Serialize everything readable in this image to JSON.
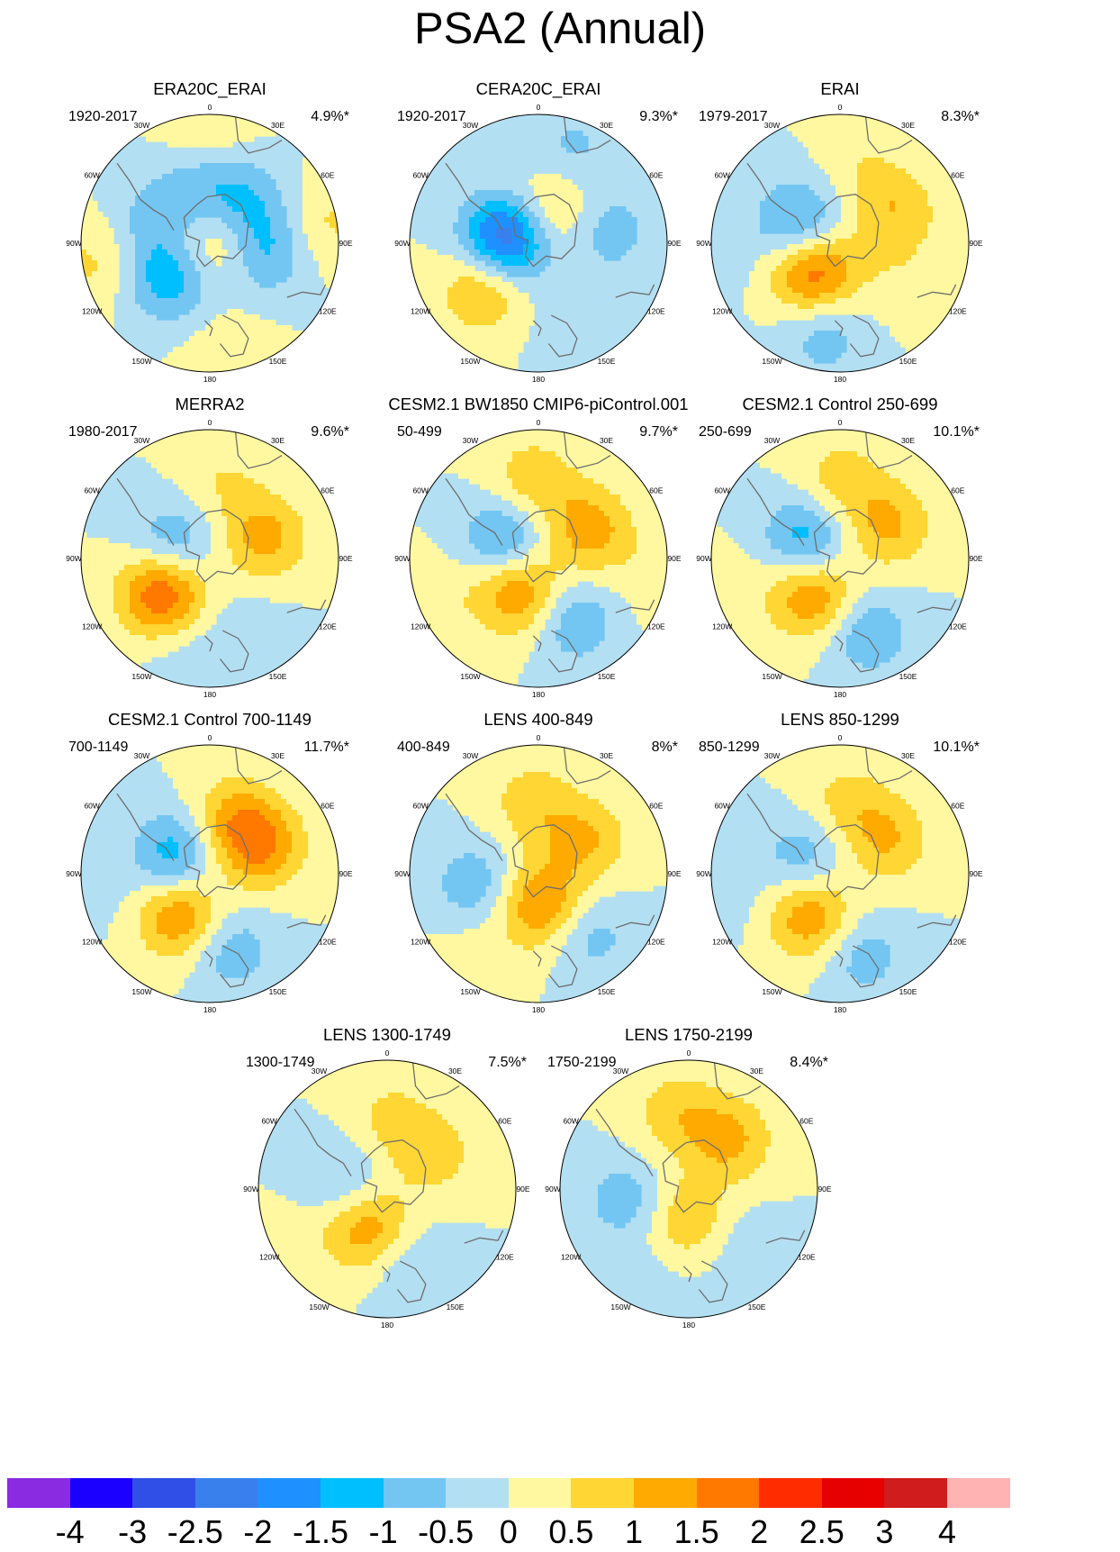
{
  "title": "PSA2 (Annual)",
  "lon_labels": [
    "0",
    "30E",
    "60E",
    "90E",
    "120E",
    "150E",
    "180",
    "150W",
    "120W",
    "90W",
    "60W",
    "30W"
  ],
  "colors": {
    "ocean_fill": "#b3dff2",
    "coastline": "#6e6e6e",
    "contour_levels": [
      "#8a2be2",
      "#1b00ff",
      "#2f4fe6",
      "#3a80ed",
      "#1e90ff",
      "#00bfff",
      "#73c6f2",
      "#b3dff2",
      "#fff8a0",
      "#ffd633",
      "#ffaa00",
      "#ff7800",
      "#ff2c00",
      "#e60000",
      "#d01c1c",
      "#ffb3b3"
    ]
  },
  "colorbar": {
    "labels": [
      "-4",
      "-3",
      "-2.5",
      "-2",
      "-1.5",
      "-1",
      "-0.5",
      "0",
      "0.5",
      "1",
      "1.5",
      "2",
      "2.5",
      "3",
      "4"
    ],
    "colors": [
      "#8a2be2",
      "#1b00ff",
      "#2f4fe6",
      "#3a80ed",
      "#1e90ff",
      "#00bfff",
      "#73c6f2",
      "#b3dff2",
      "#fff8a0",
      "#ffd633",
      "#ffaa00",
      "#ff7800",
      "#ff2c00",
      "#e60000",
      "#d01c1c",
      "#ffb3b3"
    ]
  },
  "chart_data": {
    "type": "polar_contour",
    "title": "PSA2 (Annual)",
    "projection": "south polar stereographic",
    "color_levels": [
      -4,
      -3,
      -2.5,
      -2,
      -1.5,
      -1,
      -0.5,
      0,
      0.5,
      1,
      1.5,
      2,
      2.5,
      3,
      4
    ],
    "panels": [
      {
        "title": "ERA20C_ERAI",
        "period": "1920-2017",
        "variance": "4.9%*",
        "features": [
          {
            "lon": 105,
            "r": 0.12,
            "v": 0.8
          },
          {
            "lon": -45,
            "r": 0.1,
            "v": 0.6
          },
          {
            "lon": -130,
            "r": 0.4,
            "v": -1.4
          },
          {
            "lon": 100,
            "r": 0.4,
            "v": -1.2
          },
          {
            "lon": 0,
            "r": 0.4,
            "v": -0.8
          },
          {
            "lon": -60,
            "r": 0.43,
            "v": -0.8
          },
          {
            "lon": 45,
            "r": 0.42,
            "v": -0.8
          },
          {
            "lon": -100,
            "r": 0.95,
            "v": 0.6
          },
          {
            "lon": 80,
            "r": 0.95,
            "v": 0.6
          },
          {
            "lon": 0,
            "r": 0.95,
            "v": 0.5
          },
          {
            "lon": 170,
            "r": 0.9,
            "v": 0.4
          }
        ]
      },
      {
        "title": "CERA20C_ERAI",
        "period": "1920-2017",
        "variance": "9.3%*",
        "features": [
          {
            "lon": -80,
            "r": 0.25,
            "v": -2.6
          },
          {
            "lon": 20,
            "r": 0.25,
            "v": 1.0
          },
          {
            "lon": -130,
            "r": 0.55,
            "v": 1.2
          },
          {
            "lon": 80,
            "r": 0.55,
            "v": -0.8
          },
          {
            "lon": 20,
            "r": 0.8,
            "v": -0.6
          },
          {
            "lon": 170,
            "r": 0.6,
            "v": -0.2
          }
        ]
      },
      {
        "title": "ERAI",
        "period": "1979-2017",
        "variance": "8.3%*",
        "features": [
          {
            "lon": -135,
            "r": 0.3,
            "v": 2.0
          },
          {
            "lon": -65,
            "r": 0.35,
            "v": -1.4
          },
          {
            "lon": 60,
            "r": 0.5,
            "v": 0.9
          },
          {
            "lon": -170,
            "r": 0.72,
            "v": -0.8
          },
          {
            "lon": 15,
            "r": 0.6,
            "v": 0.4
          },
          {
            "lon": 120,
            "r": 0.55,
            "v": 0.3
          },
          {
            "lon": -100,
            "r": 0.9,
            "v": -0.2
          }
        ]
      },
      {
        "title": "MERRA2",
        "period": "1980-2017",
        "variance": "9.6%*",
        "features": [
          {
            "lon": -125,
            "r": 0.45,
            "v": 2.1
          },
          {
            "lon": -70,
            "r": 0.3,
            "v": -1.1
          },
          {
            "lon": 70,
            "r": 0.45,
            "v": 1.2
          },
          {
            "lon": 10,
            "r": 0.6,
            "v": 0.5
          },
          {
            "lon": 150,
            "r": 0.6,
            "v": -0.3
          },
          {
            "lon": -170,
            "r": 0.8,
            "v": -0.4
          }
        ]
      },
      {
        "title": "CESM2.1 BW1850 CMIP6-piControl.001",
        "period": "50-499",
        "variance": "9.7%*",
        "features": [
          {
            "lon": -150,
            "r": 0.3,
            "v": 1.6
          },
          {
            "lon": -60,
            "r": 0.3,
            "v": -1.3
          },
          {
            "lon": 60,
            "r": 0.45,
            "v": 1.3
          },
          {
            "lon": 150,
            "r": 0.55,
            "v": -1.0
          },
          {
            "lon": -5,
            "r": 0.6,
            "v": 0.9
          },
          {
            "lon": -110,
            "r": 0.75,
            "v": 0.3
          },
          {
            "lon": 100,
            "r": 0.9,
            "v": 0.3
          }
        ]
      },
      {
        "title": "CESM2.1 Control 250-699",
        "period": "250-699",
        "variance": "10.1%*",
        "features": [
          {
            "lon": -145,
            "r": 0.35,
            "v": 1.6
          },
          {
            "lon": -60,
            "r": 0.3,
            "v": -1.4
          },
          {
            "lon": 55,
            "r": 0.45,
            "v": 1.1
          },
          {
            "lon": 160,
            "r": 0.6,
            "v": -1.0
          },
          {
            "lon": 0,
            "r": 0.6,
            "v": 0.8
          },
          {
            "lon": -105,
            "r": 0.75,
            "v": 0.2
          }
        ]
      },
      {
        "title": "CESM2.1 Control 700-1149",
        "period": "700-1149",
        "variance": "11.7%*",
        "features": [
          {
            "lon": -145,
            "r": 0.4,
            "v": 1.6
          },
          {
            "lon": -60,
            "r": 0.3,
            "v": -1.4
          },
          {
            "lon": 60,
            "r": 0.45,
            "v": 1.5
          },
          {
            "lon": 20,
            "r": 0.45,
            "v": 1.0
          },
          {
            "lon": 165,
            "r": 0.6,
            "v": -0.9
          },
          {
            "lon": -100,
            "r": 0.9,
            "v": -0.2
          }
        ]
      },
      {
        "title": "LENS 400-849",
        "period": "400-849",
        "variance": "8%*",
        "features": [
          {
            "lon": 175,
            "r": 0.25,
            "v": 1.6
          },
          {
            "lon": -100,
            "r": 0.5,
            "v": -0.9
          },
          {
            "lon": 140,
            "r": 0.6,
            "v": -0.8
          },
          {
            "lon": 55,
            "r": 0.45,
            "v": 1.0
          },
          {
            "lon": -5,
            "r": 0.55,
            "v": 0.8
          },
          {
            "lon": -140,
            "r": 0.8,
            "v": 0.3
          }
        ]
      },
      {
        "title": "LENS 850-1299",
        "period": "850-1299",
        "variance": "10.1%*",
        "features": [
          {
            "lon": -145,
            "r": 0.4,
            "v": 1.5
          },
          {
            "lon": -65,
            "r": 0.3,
            "v": -0.9
          },
          {
            "lon": 55,
            "r": 0.45,
            "v": 1.0
          },
          {
            "lon": 5,
            "r": 0.55,
            "v": 0.7
          },
          {
            "lon": 165,
            "r": 0.65,
            "v": -0.8
          },
          {
            "lon": -105,
            "r": 0.85,
            "v": -0.2
          }
        ]
      },
      {
        "title": "LENS 1300-1749",
        "period": "1300-1749",
        "variance": "7.5%*",
        "features": [
          {
            "lon": -155,
            "r": 0.35,
            "v": 1.4
          },
          {
            "lon": -75,
            "r": 0.35,
            "v": -0.7
          },
          {
            "lon": 50,
            "r": 0.45,
            "v": 0.8
          },
          {
            "lon": 0,
            "r": 0.55,
            "v": 0.6
          },
          {
            "lon": 165,
            "r": 0.6,
            "v": -0.6
          },
          {
            "lon": -120,
            "r": 0.85,
            "v": 0.2
          }
        ]
      },
      {
        "title": "LENS 1750-2199",
        "period": "1750-2199",
        "variance": "8.4%*",
        "features": [
          {
            "lon": 175,
            "r": 0.25,
            "v": 1.1
          },
          {
            "lon": -100,
            "r": 0.5,
            "v": -0.8
          },
          {
            "lon": 140,
            "r": 0.5,
            "v": -0.5
          },
          {
            "lon": 40,
            "r": 0.5,
            "v": 1.1
          },
          {
            "lon": -10,
            "r": 0.6,
            "v": 0.8
          },
          {
            "lon": -160,
            "r": 0.85,
            "v": -0.3
          }
        ]
      }
    ]
  }
}
